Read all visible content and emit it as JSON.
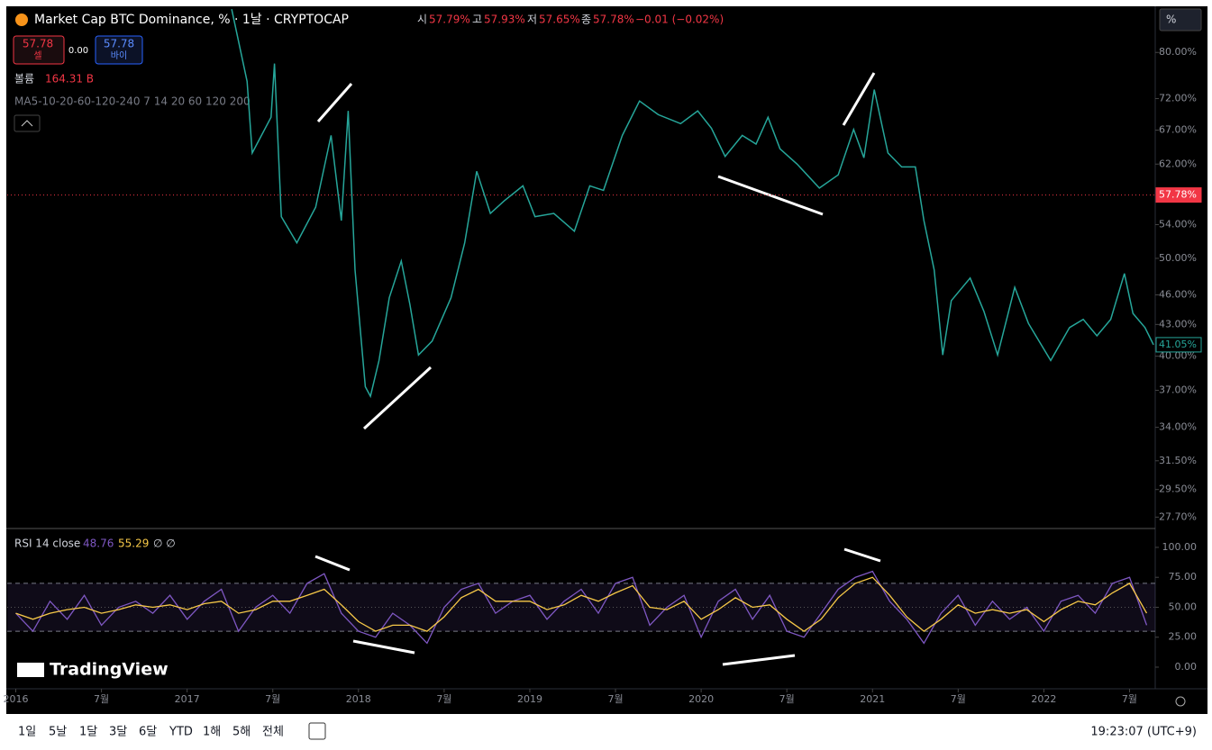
{
  "header": {
    "title": "Market Cap BTC Dominance, % · 1날 · CRYPTOCAP",
    "ohlc": [
      {
        "label": "시",
        "value": "57.79%"
      },
      {
        "label": "고",
        "value": "57.93%"
      },
      {
        "label": "저",
        "value": "57.65%"
      },
      {
        "label": "종",
        "value": "57.78%"
      }
    ],
    "change": "−0.01 (−0.02%)",
    "sell": {
      "price": "57.78",
      "label": "셀"
    },
    "spread": "0.00",
    "buy": {
      "price": "57.78",
      "label": "바이"
    },
    "volume": {
      "label": "볼륨",
      "value": "164.31 B"
    },
    "ma": "MA5-10-20-60-120-240 7 14 20 60 120 200",
    "scale_button": "%"
  },
  "chart_data": [
    {
      "type": "line",
      "color": "#26a69a",
      "log": true,
      "x": [
        2017.26,
        2017.35,
        2017.38,
        2017.49,
        2017.51,
        2017.55,
        2017.64,
        2017.75,
        2017.84,
        2017.9,
        2017.94,
        2017.98,
        2018.04,
        2018.07,
        2018.12,
        2018.18,
        2018.25,
        2018.3,
        2018.35,
        2018.43,
        2018.54,
        2018.62,
        2018.69,
        2018.77,
        2018.85,
        2018.96,
        2019.03,
        2019.14,
        2019.26,
        2019.35,
        2019.43,
        2019.54,
        2019.64,
        2019.75,
        2019.88,
        2019.98,
        2020.06,
        2020.14,
        2020.24,
        2020.32,
        2020.39,
        2020.46,
        2020.56,
        2020.69,
        2020.8,
        2020.89,
        2020.95,
        2021.01,
        2021.09,
        2021.17,
        2021.25,
        2021.3,
        2021.36,
        2021.41,
        2021.46,
        2021.57,
        2021.65,
        2021.73,
        2021.83,
        2021.91,
        2022.04,
        2022.15,
        2022.23,
        2022.31,
        2022.39,
        2022.47,
        2022.52,
        2022.59,
        2022.64
      ],
      "values": [
        88.3,
        74.9,
        63.6,
        69,
        78,
        55,
        51.8,
        56.2,
        66.2,
        54.5,
        70,
        48.7,
        37.3,
        36.5,
        39.6,
        45.7,
        49.7,
        45,
        40.1,
        41.4,
        45.7,
        51.8,
        61,
        55.4,
        57,
        59,
        55,
        55.4,
        53.2,
        59,
        58.4,
        66.2,
        71.6,
        69.4,
        68,
        70,
        67.3,
        63.1,
        66.2,
        64.9,
        69,
        64.2,
        62,
        58.7,
        60.5,
        67.1,
        62.9,
        73.5,
        63.6,
        61.6,
        61.6,
        54.5,
        48.7,
        40.1,
        45.4,
        47.8,
        44.3,
        40.1,
        46.8,
        43.1,
        39.6,
        42.7,
        43.5,
        41.9,
        43.5,
        48.3,
        44.1,
        42.7,
        41.05
      ],
      "xlim": [
        2015.95,
        2022.65
      ],
      "xticks": [
        2016,
        {
          "value": 2016.5,
          "label": "7월"
        },
        2017,
        {
          "value": 2017.5,
          "label": "7월"
        },
        2018,
        {
          "value": 2018.5,
          "label": "7월"
        },
        2019,
        {
          "value": 2019.5,
          "label": "7월"
        },
        2020,
        {
          "value": 2020.5,
          "label": "7월"
        },
        2021,
        {
          "value": 2021.5,
          "label": "7월"
        },
        2022,
        {
          "value": 2022.5,
          "label": "7월"
        }
      ],
      "ylim": [
        27.1,
        88.7
      ],
      "yticks": [
        {
          "value": 80,
          "label": "80.00%"
        },
        {
          "value": 72,
          "label": "72.00%"
        },
        {
          "value": 67,
          "label": "67.00%"
        },
        {
          "value": 62,
          "label": "62.00%"
        },
        {
          "value": 54,
          "label": "54.00%"
        },
        {
          "value": 50,
          "label": "50.00%"
        },
        {
          "value": 46,
          "label": "46.00%"
        },
        {
          "value": 43,
          "label": "43.00%"
        },
        {
          "value": 40,
          "label": "40.00%"
        },
        {
          "value": 37,
          "label": "37.00%"
        },
        {
          "value": 34,
          "label": "34.00%"
        },
        {
          "value": 31.5,
          "label": "31.50%"
        },
        {
          "value": 29.5,
          "label": "29.50%"
        },
        {
          "value": 27.7,
          "label": "27.70%"
        }
      ],
      "price_tags": [
        {
          "value": 57.78,
          "label": "57.78%",
          "color": "#f23645"
        },
        {
          "value": 41.05,
          "label": "41.05%",
          "color": "#26a69a"
        }
      ]
    },
    {
      "type": "rsi",
      "title": "RSI 14 close",
      "extra": "∅ ∅",
      "x": [
        2016.0,
        2016.1,
        2016.2,
        2016.3,
        2016.4,
        2016.5,
        2016.6,
        2016.7,
        2016.8,
        2016.9,
        2017.0,
        2017.1,
        2017.2,
        2017.3,
        2017.4,
        2017.5,
        2017.6,
        2017.7,
        2017.8,
        2017.9,
        2018.0,
        2018.1,
        2018.2,
        2018.3,
        2018.4,
        2018.5,
        2018.6,
        2018.7,
        2018.8,
        2018.9,
        2019.0,
        2019.1,
        2019.2,
        2019.3,
        2019.4,
        2019.5,
        2019.6,
        2019.7,
        2019.8,
        2019.9,
        2020.0,
        2020.1,
        2020.2,
        2020.3,
        2020.4,
        2020.5,
        2020.6,
        2020.7,
        2020.8,
        2020.9,
        2021.0,
        2021.1,
        2021.2,
        2021.3,
        2021.4,
        2021.5,
        2021.6,
        2021.7,
        2021.8,
        2021.9,
        2022.0,
        2022.1,
        2022.2,
        2022.3,
        2022.4,
        2022.5,
        2022.6
      ],
      "series": [
        {
          "color": "#7e57c2",
          "last": 48.76,
          "values": [
            45,
            30,
            55,
            40,
            60,
            35,
            50,
            55,
            45,
            60,
            40,
            55,
            65,
            30,
            50,
            60,
            45,
            70,
            78,
            45,
            30,
            25,
            45,
            35,
            20,
            50,
            65,
            70,
            45,
            55,
            60,
            40,
            55,
            65,
            45,
            70,
            75,
            35,
            50,
            60,
            25,
            55,
            65,
            40,
            60,
            30,
            25,
            45,
            65,
            75,
            80,
            55,
            40,
            20,
            45,
            60,
            35,
            55,
            40,
            50,
            30,
            55,
            60,
            45,
            70,
            75,
            35
          ]
        },
        {
          "color": "#f7c948",
          "last": 55.29,
          "values": [
            45,
            40,
            45,
            48,
            50,
            45,
            48,
            52,
            50,
            52,
            48,
            53,
            55,
            45,
            48,
            55,
            55,
            60,
            65,
            52,
            38,
            30,
            35,
            35,
            30,
            42,
            58,
            65,
            55,
            55,
            55,
            48,
            52,
            60,
            55,
            62,
            68,
            50,
            48,
            55,
            40,
            48,
            58,
            50,
            52,
            40,
            30,
            40,
            58,
            70,
            75,
            60,
            42,
            30,
            40,
            52,
            45,
            48,
            45,
            48,
            38,
            48,
            55,
            52,
            62,
            70,
            45
          ]
        }
      ],
      "xlim": [
        2015.95,
        2022.65
      ],
      "ylim": [
        -15.8,
        115
      ],
      "yticks": [
        {
          "value": 100,
          "label": "100.00"
        },
        {
          "value": 75,
          "label": "75.00"
        },
        {
          "value": 50,
          "label": "50.00"
        },
        {
          "value": 25,
          "label": "25.00"
        },
        {
          "value": 0,
          "label": "0.00"
        }
      ],
      "bands": [
        30,
        70
      ],
      "midline": 50
    }
  ],
  "watermark": "TradingView",
  "toolbar": {
    "ranges": [
      "1일",
      "5날",
      "1달",
      "3달",
      "6달",
      "YTD",
      "1해",
      "5해",
      "전체"
    ],
    "clock": "19:23:07 (UTC+9)"
  }
}
